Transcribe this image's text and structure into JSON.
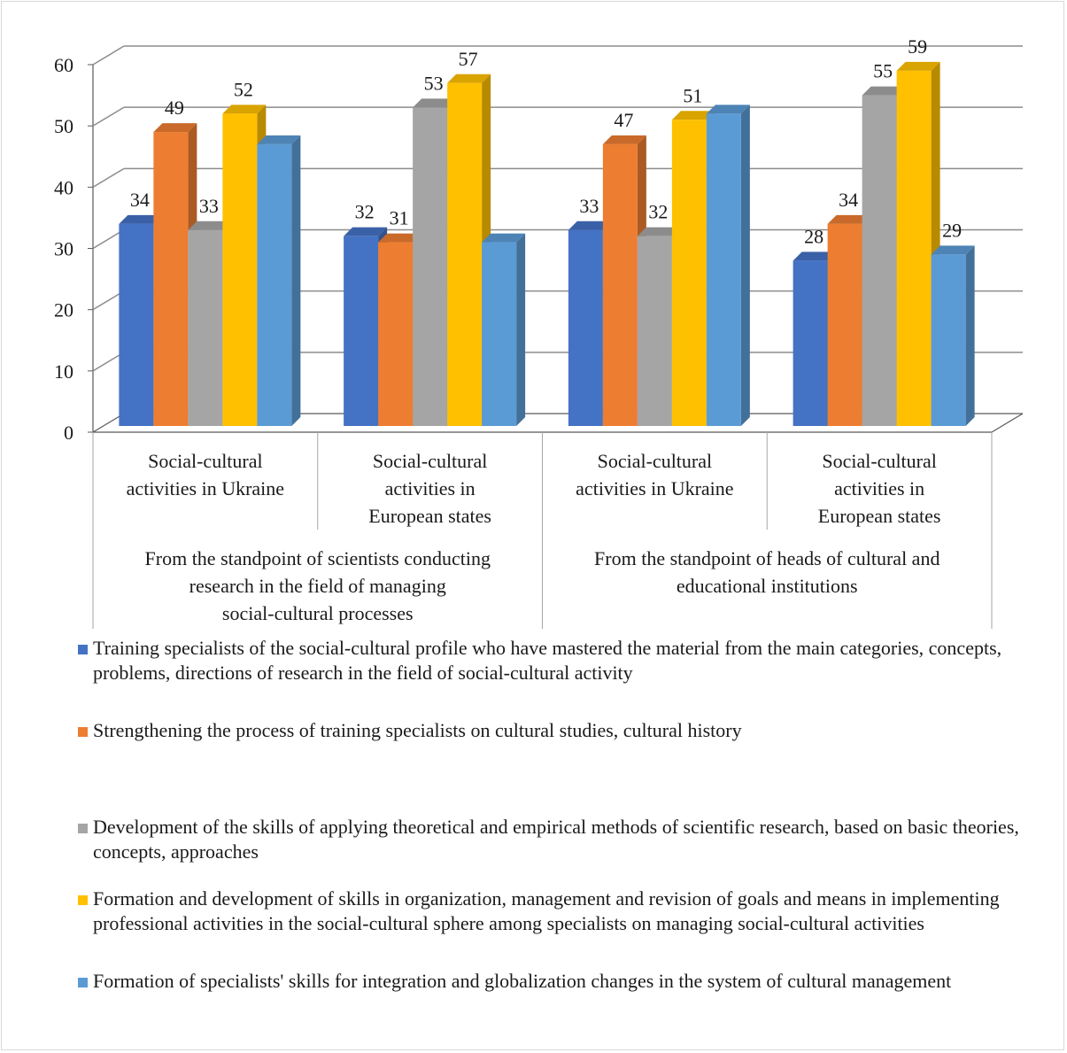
{
  "chart_data": {
    "type": "bar",
    "ylim": [
      0,
      60
    ],
    "yticks": [
      0,
      10,
      20,
      30,
      40,
      50,
      60
    ],
    "grid": true,
    "legend_position": "bottom",
    "groups": [
      {
        "label": "From the standpoint of scientists conducting research in the field of managing social-cultural processes",
        "categories": [
          "Social-cultural activities in Ukraine",
          "Social-cultural activities in European states"
        ]
      },
      {
        "label": "From the standpoint of heads of cultural and educational institutions",
        "categories": [
          "Social-cultural activities in Ukraine",
          "Social-cultural activities in European states"
        ]
      }
    ],
    "categories": [
      "Social-cultural activities in Ukraine",
      "Social-cultural activities in European states",
      "Social-cultural activities in Ukraine",
      "Social-cultural activities in European states"
    ],
    "series": [
      {
        "name": "Training specialists of the social-cultural profile who have mastered the material from the main categories, concepts, problems, directions of research in the field of social-cultural activity",
        "color": "#4472C4",
        "values": [
          34,
          32,
          33,
          28
        ],
        "data_labels": [
          "34",
          "32",
          "33",
          "28"
        ]
      },
      {
        "name": "Strengthening the process of training specialists on cultural studies, cultural history",
        "color": "#ED7D31",
        "values": [
          49,
          31,
          47,
          34
        ],
        "data_labels": [
          "49",
          "31",
          "47",
          "34"
        ]
      },
      {
        "name": "Development of the skills of applying theoretical and empirical methods of scientific research, based on basic theories, concepts, approaches",
        "color": "#A5A5A5",
        "values": [
          33,
          53,
          32,
          55
        ],
        "data_labels": [
          "33",
          "53",
          "32",
          "55"
        ]
      },
      {
        "name": "Formation and development of skills in organization, management and revision of goals and means in implementing professional activities in the social-cultural sphere among specialists on managing social-cultural activities",
        "color": "#FFC000",
        "values": [
          52,
          57,
          51,
          59
        ],
        "data_labels": [
          "52",
          "57",
          "51",
          "59"
        ]
      },
      {
        "name": "Formation of specialists' skills for integration and globalization changes in the system of cultural management",
        "color": "#5B9BD5",
        "values": [
          47,
          31,
          52,
          29
        ],
        "data_labels": [
          "",
          "",
          "",
          "29"
        ]
      }
    ]
  }
}
